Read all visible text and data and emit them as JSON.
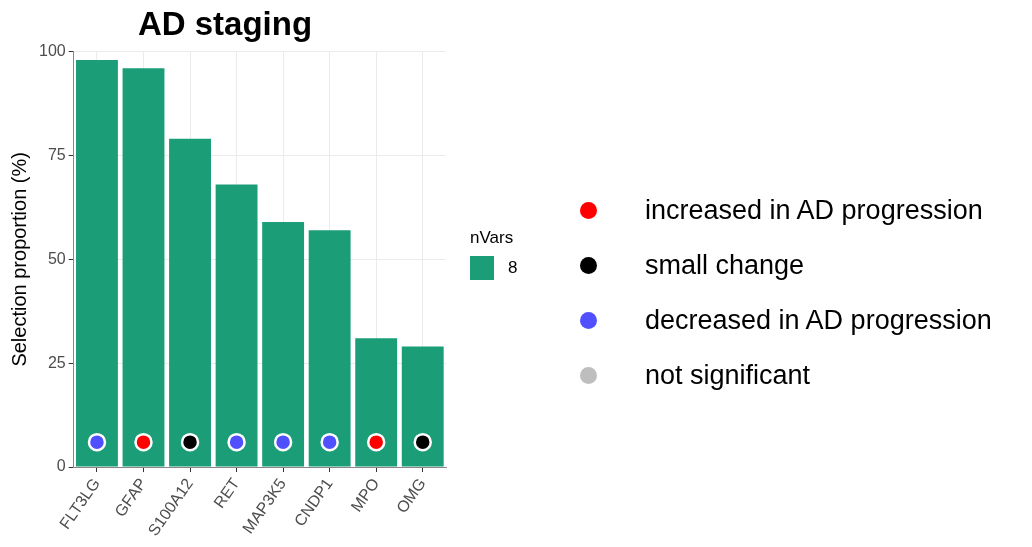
{
  "chart_data": {
    "type": "bar",
    "title": "AD staging",
    "ylabel": "Selection proportion (%)",
    "legend_title": "nVars",
    "categories": [
      "FLT3LG",
      "GFAP",
      "S100A12",
      "RET",
      "MAP3K5",
      "CNDP1",
      "MPO",
      "OMG"
    ],
    "series": [
      {
        "name": "8",
        "color": "#1b9e77",
        "values": [
          98,
          96,
          79,
          68,
          59,
          57,
          31,
          29
        ]
      },
      {
        "name": "increased in AD progression",
        "type": "scatter",
        "color": "#ff0000",
        "values": [
          null,
          6,
          null,
          null,
          null,
          null,
          6,
          null
        ]
      },
      {
        "name": "small change",
        "type": "scatter",
        "color": "#000000",
        "values": [
          null,
          null,
          6,
          null,
          null,
          null,
          null,
          6
        ]
      },
      {
        "name": "decreased in AD progression",
        "type": "scatter",
        "color": "#5050ff",
        "values": [
          6,
          null,
          null,
          6,
          6,
          6,
          null,
          null
        ]
      },
      {
        "name": "not significant",
        "type": "scatter",
        "color": "#bebebe",
        "values": [
          null,
          null,
          null,
          null,
          null,
          null,
          null,
          null
        ]
      }
    ],
    "ylim": [
      0,
      100
    ],
    "yticks": [
      0,
      25,
      50,
      75,
      100
    ],
    "grid": true,
    "legend": "right",
    "marker": "circle"
  }
}
